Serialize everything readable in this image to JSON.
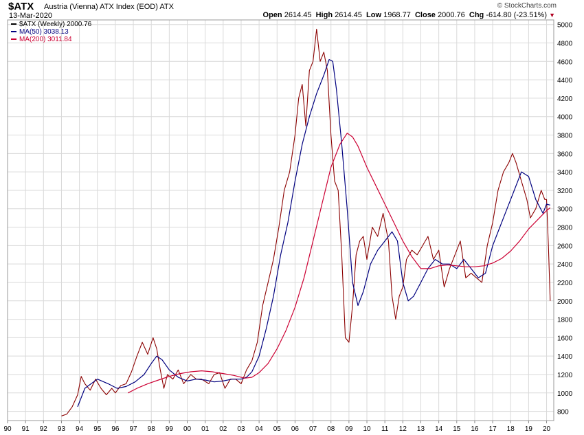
{
  "header": {
    "symbol": "$ATX",
    "name": "Austria (Vienna) ATX Index (EOD)  ATX",
    "date": "13-Mar-2020",
    "credit": "© StockCharts.com",
    "open_label": "Open",
    "open": "2614.45",
    "high_label": "High",
    "high": "2614.45",
    "low_label": "Low",
    "low": "1968.77",
    "close_label": "Close",
    "close": "2000.76",
    "chg_label": "Chg",
    "chg": "-614.80 (-23.51%)",
    "chg_arrow": "▼"
  },
  "chart_data": {
    "type": "line",
    "title": "$ATX Austria (Vienna) ATX Index (EOD) ATX",
    "xlabel": "",
    "ylabel": "",
    "x_ticks": [
      "90",
      "91",
      "92",
      "93",
      "94",
      "95",
      "96",
      "97",
      "98",
      "99",
      "00",
      "01",
      "02",
      "03",
      "04",
      "05",
      "06",
      "07",
      "08",
      "09",
      "10",
      "11",
      "12",
      "13",
      "14",
      "15",
      "16",
      "17",
      "18",
      "19",
      "20"
    ],
    "y_ticks": [
      800,
      1000,
      1200,
      1400,
      1600,
      1800,
      2000,
      2200,
      2400,
      2600,
      2800,
      3000,
      3200,
      3400,
      3600,
      3800,
      4000,
      4200,
      4400,
      4600,
      4800,
      5000
    ],
    "ylim": [
      700,
      5050
    ],
    "xlim": [
      1990.0,
      2020.4
    ],
    "grid": true,
    "legend": [
      {
        "label": "$ATX (Weekly) 2000.76",
        "color": "#000000"
      },
      {
        "label": "MA(50) 3038.13",
        "color": "#00007f"
      },
      {
        "label": "MA(200) 3011.84",
        "color": "#cc0033"
      }
    ],
    "series": [
      {
        "name": "$ATX (Weekly)",
        "color": "#8b0000",
        "x": [
          1993.0,
          1993.3,
          1993.6,
          1993.9,
          1994.1,
          1994.3,
          1994.6,
          1994.9,
          1995.2,
          1995.5,
          1995.8,
          1996.0,
          1996.3,
          1996.6,
          1996.9,
          1997.2,
          1997.5,
          1997.8,
          1998.1,
          1998.3,
          1998.5,
          1998.7,
          1998.9,
          1999.2,
          1999.5,
          1999.8,
          2000.2,
          2000.5,
          2000.8,
          2001.2,
          2001.5,
          2001.8,
          2002.1,
          2002.4,
          2002.7,
          2003.0,
          2003.3,
          2003.6,
          2003.9,
          2004.2,
          2004.5,
          2004.8,
          2005.1,
          2005.4,
          2005.7,
          2006.0,
          2006.2,
          2006.4,
          2006.6,
          2006.8,
          2007.0,
          2007.2,
          2007.4,
          2007.6,
          2007.8,
          2008.0,
          2008.2,
          2008.4,
          2008.6,
          2008.8,
          2009.0,
          2009.2,
          2009.4,
          2009.6,
          2009.8,
          2010.0,
          2010.3,
          2010.6,
          2010.9,
          2011.2,
          2011.4,
          2011.6,
          2011.8,
          2012.0,
          2012.2,
          2012.5,
          2012.8,
          2013.1,
          2013.4,
          2013.7,
          2014.0,
          2014.3,
          2014.6,
          2014.9,
          2015.2,
          2015.5,
          2015.8,
          2016.1,
          2016.4,
          2016.7,
          2017.0,
          2017.3,
          2017.6,
          2017.9,
          2018.1,
          2018.3,
          2018.6,
          2018.9,
          2019.1,
          2019.4,
          2019.7,
          2019.9,
          2020.0,
          2020.1,
          2020.2
        ],
        "values": [
          750,
          770,
          850,
          980,
          1180,
          1100,
          1030,
          1150,
          1050,
          980,
          1050,
          1000,
          1080,
          1100,
          1230,
          1400,
          1550,
          1420,
          1600,
          1480,
          1250,
          1050,
          1200,
          1150,
          1250,
          1100,
          1200,
          1150,
          1150,
          1100,
          1200,
          1220,
          1050,
          1150,
          1150,
          1100,
          1250,
          1350,
          1550,
          1950,
          2200,
          2450,
          2800,
          3200,
          3400,
          3800,
          4200,
          4350,
          3900,
          4500,
          4600,
          4950,
          4600,
          4700,
          4500,
          3800,
          3300,
          3200,
          2500,
          1600,
          1550,
          1950,
          2500,
          2650,
          2700,
          2450,
          2800,
          2700,
          2950,
          2650,
          2050,
          1800,
          2050,
          2150,
          2450,
          2550,
          2500,
          2600,
          2700,
          2450,
          2550,
          2150,
          2350,
          2500,
          2650,
          2250,
          2300,
          2250,
          2200,
          2600,
          2850,
          3200,
          3400,
          3500,
          3600,
          3500,
          3300,
          3100,
          2900,
          3000,
          3200,
          3100,
          3100,
          2600,
          2000
        ]
      },
      {
        "name": "MA(50)",
        "color": "#00007f",
        "x": [
          1993.9,
          1994.3,
          1995.0,
          1995.6,
          1996.1,
          1996.6,
          1997.1,
          1997.6,
          1998.0,
          1998.3,
          1998.6,
          1999.0,
          1999.5,
          2000.0,
          2000.5,
          2001.0,
          2001.5,
          2002.0,
          2002.5,
          2003.0,
          2003.3,
          2003.6,
          2004.0,
          2004.4,
          2004.8,
          2005.2,
          2005.6,
          2006.0,
          2006.4,
          2006.8,
          2007.2,
          2007.6,
          2007.9,
          2008.1,
          2008.3,
          2008.6,
          2008.9,
          2009.2,
          2009.5,
          2009.8,
          2010.2,
          2010.6,
          2011.0,
          2011.4,
          2011.7,
          2012.0,
          2012.3,
          2012.6,
          2013.0,
          2013.4,
          2013.8,
          2014.2,
          2014.6,
          2015.0,
          2015.4,
          2015.8,
          2016.2,
          2016.6,
          2017.0,
          2017.4,
          2017.8,
          2018.2,
          2018.6,
          2019.0,
          2019.4,
          2019.8,
          2020.0,
          2020.2
        ],
        "values": [
          850,
          1050,
          1150,
          1100,
          1050,
          1070,
          1120,
          1200,
          1320,
          1400,
          1360,
          1250,
          1170,
          1130,
          1150,
          1140,
          1120,
          1130,
          1150,
          1150,
          1170,
          1230,
          1400,
          1700,
          2050,
          2500,
          2850,
          3300,
          3700,
          4000,
          4250,
          4450,
          4620,
          4600,
          4300,
          3700,
          3000,
          2200,
          1950,
          2100,
          2400,
          2550,
          2650,
          2750,
          2650,
          2200,
          2000,
          2050,
          2200,
          2350,
          2450,
          2400,
          2400,
          2350,
          2450,
          2350,
          2250,
          2300,
          2600,
          2800,
          3000,
          3200,
          3400,
          3350,
          3100,
          2950,
          3050,
          3040
        ]
      },
      {
        "name": "MA(200)",
        "color": "#cc0033",
        "x": [
          1996.7,
          1997.2,
          1997.8,
          1998.4,
          1999.0,
          1999.6,
          2000.2,
          2000.8,
          2001.4,
          2002.0,
          2002.6,
          2003.2,
          2003.6,
          2004.0,
          2004.5,
          2005.0,
          2005.5,
          2006.0,
          2006.5,
          2007.0,
          2007.5,
          2008.0,
          2008.5,
          2008.9,
          2009.2,
          2009.5,
          2010.0,
          2010.5,
          2011.0,
          2011.5,
          2012.0,
          2012.5,
          2013.0,
          2013.5,
          2014.0,
          2014.5,
          2015.0,
          2015.5,
          2016.0,
          2016.5,
          2017.0,
          2017.5,
          2018.0,
          2018.5,
          2019.0,
          2019.5,
          2020.0,
          2020.2
        ],
        "values": [
          1000,
          1050,
          1100,
          1140,
          1180,
          1210,
          1230,
          1240,
          1230,
          1210,
          1190,
          1160,
          1170,
          1220,
          1320,
          1480,
          1680,
          1930,
          2250,
          2650,
          3050,
          3450,
          3700,
          3820,
          3780,
          3680,
          3450,
          3250,
          3050,
          2850,
          2650,
          2480,
          2350,
          2350,
          2380,
          2390,
          2380,
          2370,
          2370,
          2380,
          2410,
          2460,
          2540,
          2650,
          2780,
          2880,
          2980,
          3010
        ]
      }
    ]
  }
}
